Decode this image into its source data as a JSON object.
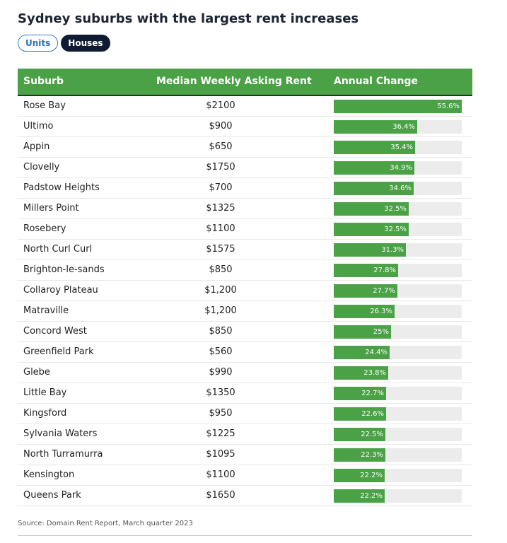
{
  "title": "Sydney suburbs with the largest rent increases",
  "toggles": {
    "units_label": "Units",
    "houses_label": "Houses",
    "selected": "Houses"
  },
  "headers": {
    "suburb": "Suburb",
    "rent": "Median Weekly Asking Rent",
    "change": "Annual Change"
  },
  "colors": {
    "header_bg": "#4aa146",
    "bar": "#4aa146",
    "bar_track": "#ececec",
    "toggle_active_bg": "#0f1b33",
    "toggle_inactive_border": "#2f7fc9"
  },
  "source": "Source: Domain Rent Report, March quarter 2023",
  "chart_data": {
    "type": "table",
    "title": "Sydney suburbs with the largest rent increases",
    "bar_max": 55.6,
    "rows": [
      {
        "suburb": "Rose Bay",
        "rent": "$2100",
        "change": 55.6,
        "change_label": "55.6%"
      },
      {
        "suburb": "Ultimo",
        "rent": "$900",
        "change": 36.4,
        "change_label": "36.4%"
      },
      {
        "suburb": "Appin",
        "rent": "$650",
        "change": 35.4,
        "change_label": "35.4%"
      },
      {
        "suburb": "Clovelly",
        "rent": "$1750",
        "change": 34.9,
        "change_label": "34.9%"
      },
      {
        "suburb": "Padstow Heights",
        "rent": "$700",
        "change": 34.6,
        "change_label": "34.6%"
      },
      {
        "suburb": "Millers Point",
        "rent": "$1325",
        "change": 32.5,
        "change_label": "32.5%"
      },
      {
        "suburb": "Rosebery",
        "rent": "$1100",
        "change": 32.5,
        "change_label": "32.5%"
      },
      {
        "suburb": "North Curl Curl",
        "rent": "$1575",
        "change": 31.3,
        "change_label": "31.3%"
      },
      {
        "suburb": "Brighton-le-sands",
        "rent": "$850",
        "change": 27.8,
        "change_label": "27.8%"
      },
      {
        "suburb": "Collaroy Plateau",
        "rent": "$1,200",
        "change": 27.7,
        "change_label": "27.7%"
      },
      {
        "suburb": "Matraville",
        "rent": "$1,200",
        "change": 26.3,
        "change_label": "26.3%"
      },
      {
        "suburb": "Concord West",
        "rent": "$850",
        "change": 25,
        "change_label": "25%"
      },
      {
        "suburb": "Greenfield Park",
        "rent": "$560",
        "change": 24.4,
        "change_label": "24.4%"
      },
      {
        "suburb": "Glebe",
        "rent": "$990",
        "change": 23.8,
        "change_label": "23.8%"
      },
      {
        "suburb": "Little Bay",
        "rent": "$1350",
        "change": 22.7,
        "change_label": "22.7%"
      },
      {
        "suburb": "Kingsford",
        "rent": "$950",
        "change": 22.6,
        "change_label": "22.6%"
      },
      {
        "suburb": "Sylvania Waters",
        "rent": "$1225",
        "change": 22.5,
        "change_label": "22.5%"
      },
      {
        "suburb": "North Turramurra",
        "rent": "$1095",
        "change": 22.3,
        "change_label": "22.3%"
      },
      {
        "suburb": "Kensington",
        "rent": "$1100",
        "change": 22.2,
        "change_label": "22.2%"
      },
      {
        "suburb": "Queens Park",
        "rent": "$1650",
        "change": 22.2,
        "change_label": "22.2%"
      }
    ]
  }
}
